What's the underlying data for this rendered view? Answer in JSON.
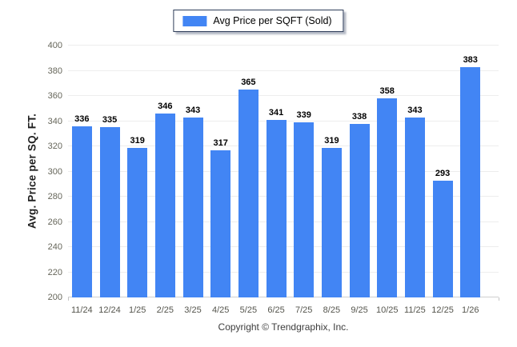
{
  "chart_data": {
    "type": "bar",
    "title": "",
    "legend_label": "Avg Price per SQFT (Sold)",
    "legend_position": "top-center",
    "ylabel": "Avg. Price per SQ. FT.",
    "xlabel": "",
    "categories": [
      "11/24",
      "12/24",
      "1/25",
      "2/25",
      "3/25",
      "4/25",
      "5/25",
      "6/25",
      "7/25",
      "8/25",
      "9/25",
      "10/25",
      "11/25",
      "12/25",
      "1/26"
    ],
    "values": [
      336,
      335,
      319,
      346,
      343,
      317,
      365,
      341,
      339,
      319,
      338,
      358,
      343,
      293,
      383
    ],
    "ylim": [
      200,
      400
    ],
    "yticks": [
      200,
      220,
      240,
      260,
      280,
      300,
      320,
      340,
      360,
      380,
      400
    ],
    "grid": "horizontal",
    "value_labels": true
  },
  "footer": {
    "copyright": "Copyright © Trendgraphix, Inc."
  },
  "colors": {
    "bar": "#4285f4",
    "legend_swatch": "#4285f4",
    "legend_border": "#2e3d59",
    "gridline": "#ededed",
    "baseline": "#cfcfcf",
    "tick_text": "#66665a",
    "value_text": "#000000"
  }
}
